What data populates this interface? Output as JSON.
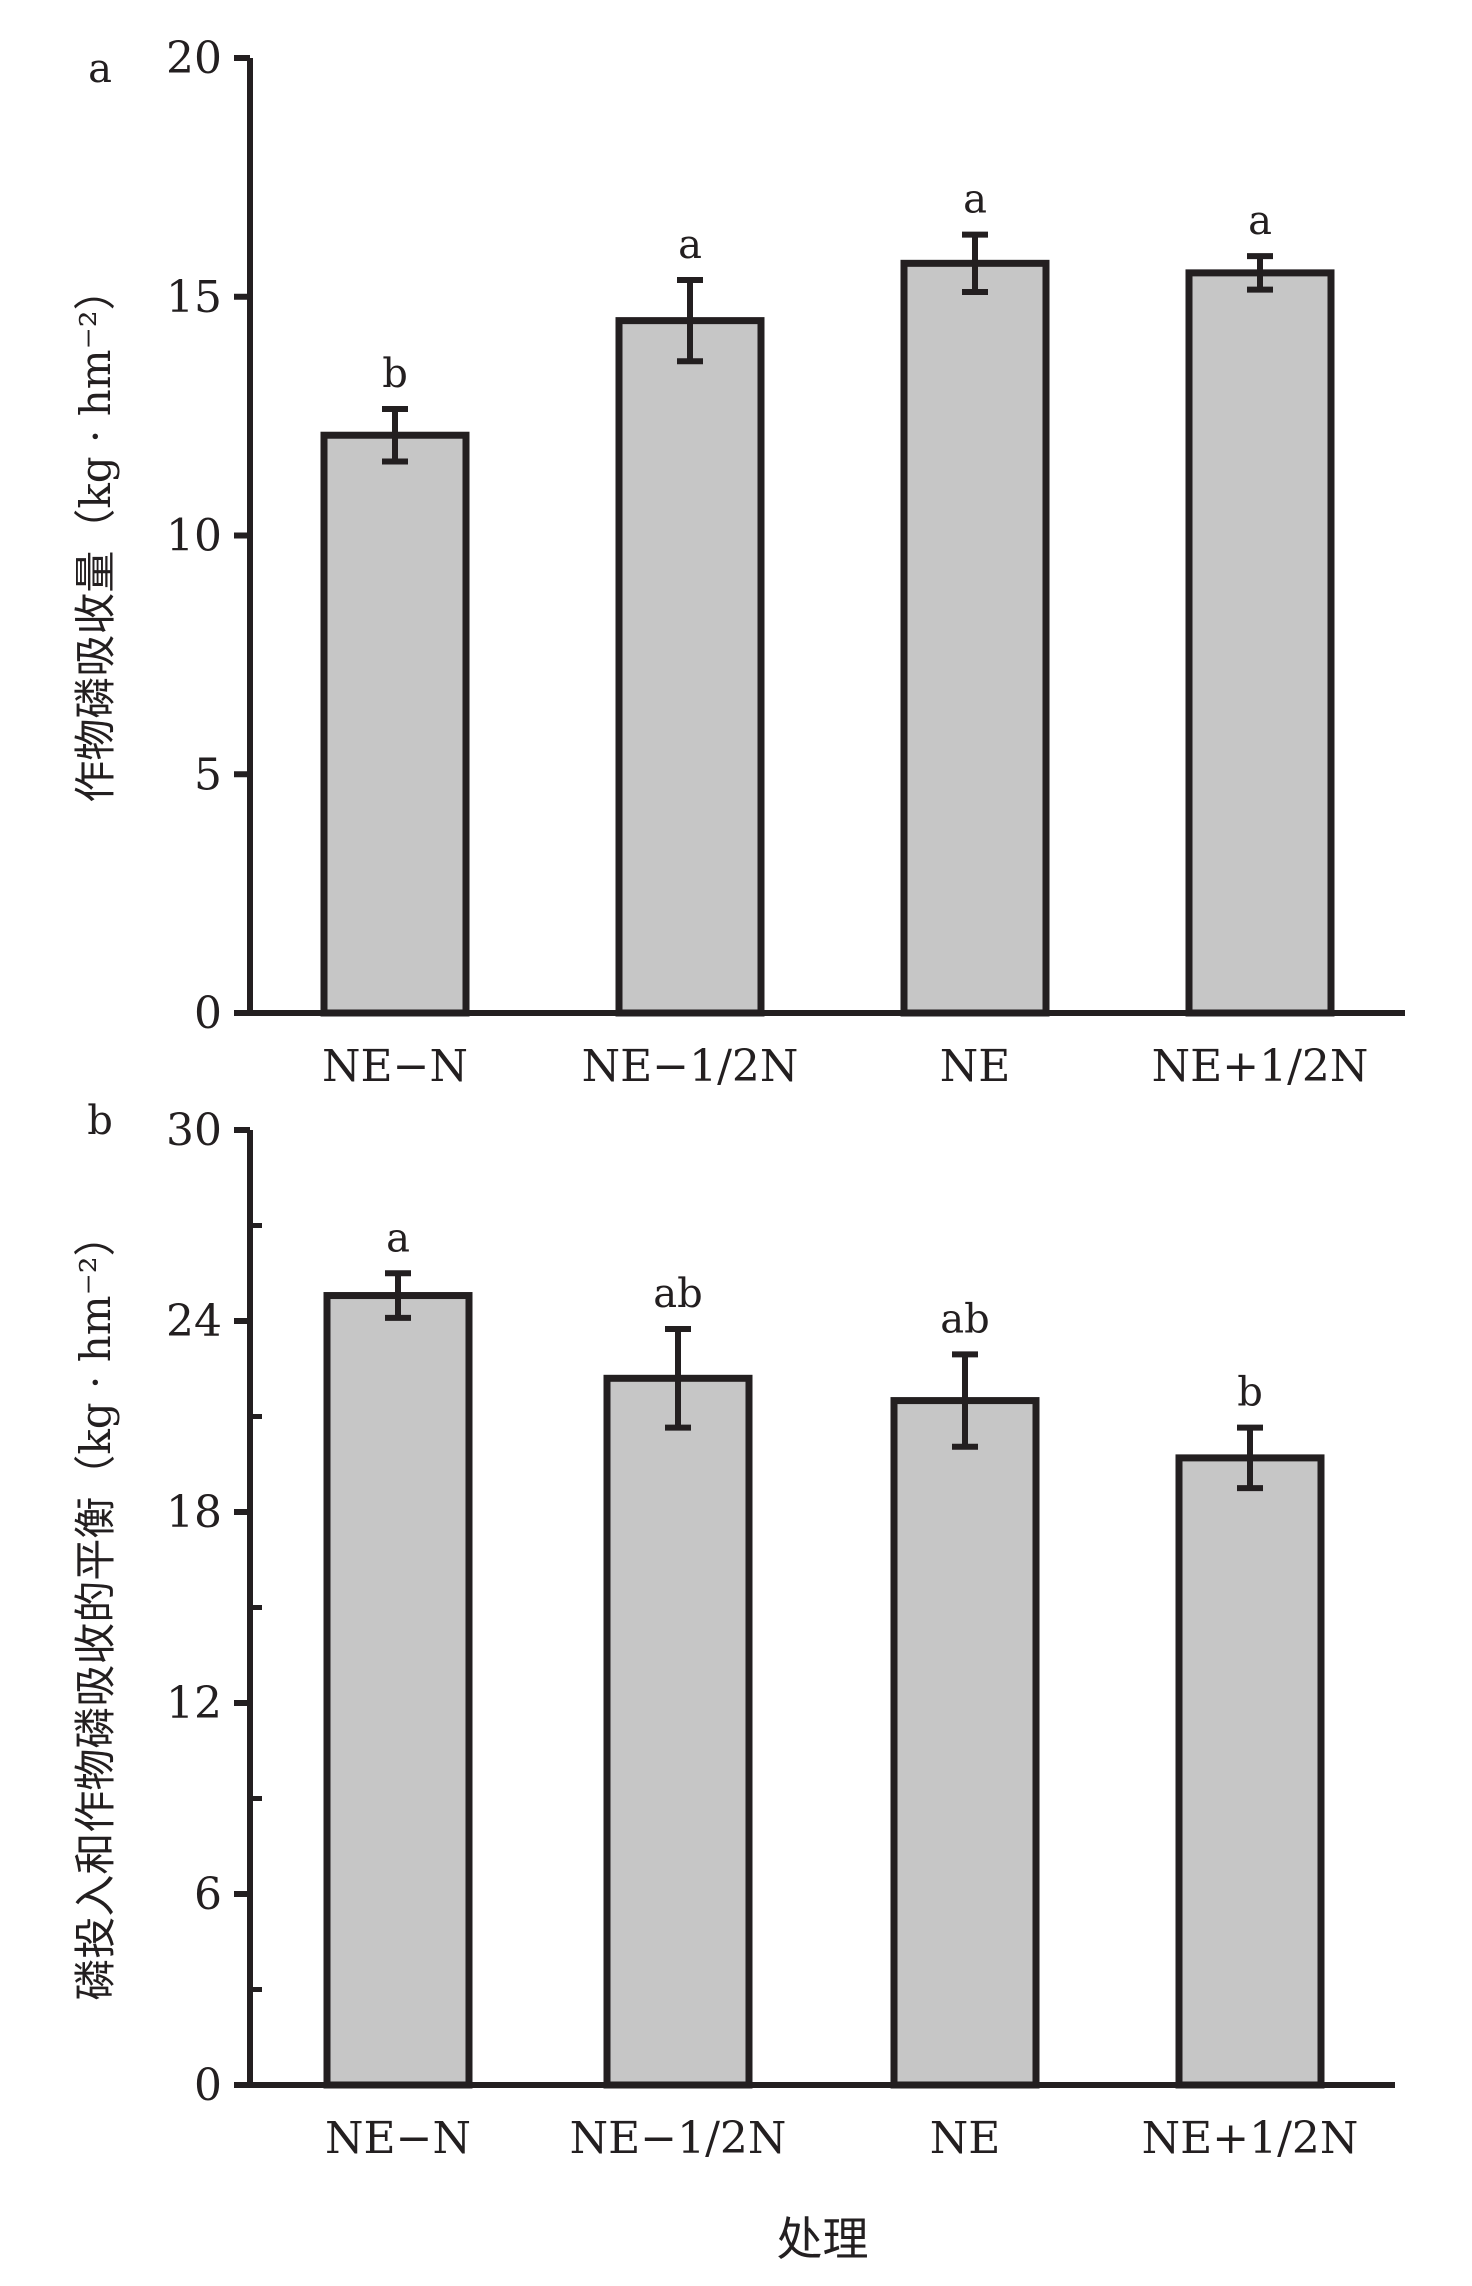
{
  "chart_data": [
    {
      "panel_label": "a",
      "type": "bar",
      "categories": [
        "NE−N",
        "NE−1/2N",
        "NE",
        "NE+1/2N"
      ],
      "values": [
        12.1,
        14.5,
        15.7,
        15.5
      ],
      "errors": [
        0.55,
        0.85,
        0.6,
        0.35
      ],
      "significance": [
        "b",
        "a",
        "a",
        "a"
      ],
      "ylabel": "作物磷吸收量（kg · hm⁻²）",
      "xlabel": "",
      "ylim": [
        0,
        20
      ],
      "yticks": [
        0,
        5,
        10,
        15,
        20
      ],
      "bar_color": "#c6c6c6",
      "edge_color": "#231f20"
    },
    {
      "panel_label": "b",
      "type": "bar",
      "categories": [
        "NE−N",
        "NE−1/2N",
        "NE",
        "NE+1/2N"
      ],
      "values": [
        24.8,
        22.2,
        21.5,
        19.7
      ],
      "errors": [
        0.7,
        1.55,
        1.45,
        0.95
      ],
      "significance": [
        "a",
        "ab",
        "ab",
        "b"
      ],
      "ylabel": "磷投入和作物磷吸收的平衡（kg · hm⁻²）",
      "xlabel": "处理",
      "ylim": [
        0,
        30
      ],
      "yticks": [
        0,
        6,
        12,
        18,
        24,
        30
      ],
      "bar_color": "#c6c6c6",
      "edge_color": "#231f20"
    }
  ]
}
